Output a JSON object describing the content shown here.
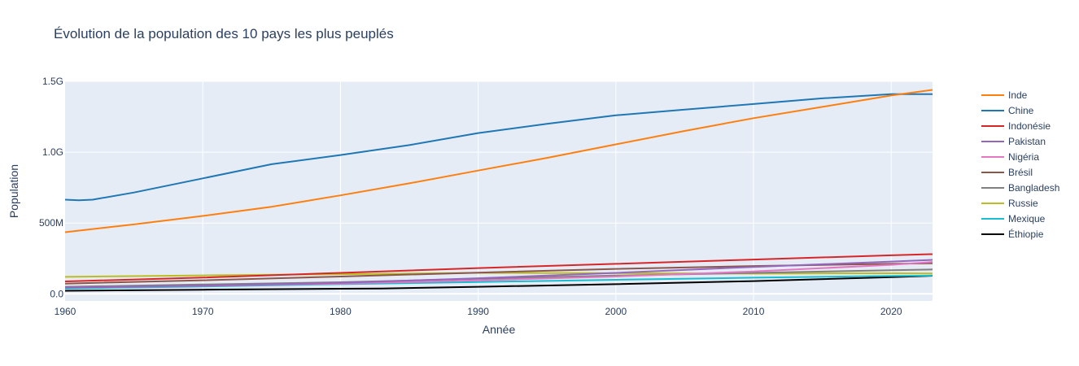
{
  "chart_data": {
    "type": "line",
    "title": "Évolution de la population des 10 pays les plus peuplés",
    "xlabel": "Année",
    "ylabel": "Population",
    "xlim": [
      1960,
      2023
    ],
    "ylim": [
      -50000000,
      1500000000
    ],
    "x_ticks": [
      1960,
      1970,
      1980,
      1990,
      2000,
      2010,
      2020
    ],
    "y_ticks": [
      {
        "value": 0,
        "label": "0.0"
      },
      {
        "value": 500000000,
        "label": "500M"
      },
      {
        "value": 1000000000,
        "label": "1.0G"
      },
      {
        "value": 1500000000,
        "label": "1.5G"
      }
    ],
    "grid": true,
    "legend_position": "right",
    "plot_background": "#e5ecf6",
    "series": [
      {
        "name": "Inde",
        "color": "#ff7f0e",
        "width": 2,
        "points": [
          [
            1960,
            435
          ],
          [
            1965,
            490
          ],
          [
            1970,
            550
          ],
          [
            1975,
            615
          ],
          [
            1980,
            695
          ],
          [
            1985,
            780
          ],
          [
            1990,
            870
          ],
          [
            1995,
            960
          ],
          [
            2000,
            1055
          ],
          [
            2005,
            1150
          ],
          [
            2010,
            1240
          ],
          [
            2015,
            1320
          ],
          [
            2020,
            1400
          ],
          [
            2023,
            1440
          ]
        ]
      },
      {
        "name": "Chine",
        "color": "#1f77b4",
        "width": 2,
        "points": [
          [
            1960,
            665
          ],
          [
            1961,
            660
          ],
          [
            1962,
            665
          ],
          [
            1965,
            715
          ],
          [
            1970,
            815
          ],
          [
            1975,
            915
          ],
          [
            1980,
            980
          ],
          [
            1985,
            1050
          ],
          [
            1990,
            1135
          ],
          [
            1995,
            1200
          ],
          [
            2000,
            1260
          ],
          [
            2005,
            1300
          ],
          [
            2010,
            1340
          ],
          [
            2015,
            1380
          ],
          [
            2020,
            1410
          ],
          [
            2023,
            1410
          ]
        ]
      },
      {
        "name": "Indonésie",
        "color": "#d62728",
        "width": 2,
        "points": [
          [
            1960,
            88
          ],
          [
            1970,
            115
          ],
          [
            1980,
            148
          ],
          [
            1990,
            182
          ],
          [
            2000,
            212
          ],
          [
            2010,
            242
          ],
          [
            2020,
            272
          ],
          [
            2023,
            280
          ]
        ]
      },
      {
        "name": "Pakistan",
        "color": "#9467bd",
        "width": 2,
        "points": [
          [
            1960,
            45
          ],
          [
            1970,
            58
          ],
          [
            1980,
            78
          ],
          [
            1990,
            110
          ],
          [
            2000,
            148
          ],
          [
            2010,
            190
          ],
          [
            2020,
            228
          ],
          [
            2023,
            240
          ]
        ]
      },
      {
        "name": "Nigéria",
        "color": "#e377c2",
        "width": 2,
        "points": [
          [
            1960,
            45
          ],
          [
            1970,
            56
          ],
          [
            1980,
            72
          ],
          [
            1990,
            95
          ],
          [
            2000,
            122
          ],
          [
            2010,
            158
          ],
          [
            2020,
            205
          ],
          [
            2023,
            225
          ]
        ]
      },
      {
        "name": "Brésil",
        "color": "#8c564b",
        "width": 2,
        "points": [
          [
            1960,
            72
          ],
          [
            1970,
            96
          ],
          [
            1980,
            122
          ],
          [
            1990,
            150
          ],
          [
            2000,
            176
          ],
          [
            2010,
            196
          ],
          [
            2020,
            212
          ],
          [
            2023,
            216
          ]
        ]
      },
      {
        "name": "Bangladesh",
        "color": "#7f7f7f",
        "width": 2,
        "points": [
          [
            1960,
            50
          ],
          [
            1970,
            66
          ],
          [
            1980,
            82
          ],
          [
            1990,
            106
          ],
          [
            2000,
            129
          ],
          [
            2010,
            148
          ],
          [
            2020,
            167
          ],
          [
            2023,
            172
          ]
        ]
      },
      {
        "name": "Russie",
        "color": "#bcbd22",
        "width": 2,
        "points": [
          [
            1960,
            120
          ],
          [
            1970,
            130
          ],
          [
            1980,
            139
          ],
          [
            1990,
            148
          ],
          [
            2000,
            146
          ],
          [
            2010,
            143
          ],
          [
            2020,
            145
          ],
          [
            2023,
            144
          ]
        ]
      },
      {
        "name": "Mexique",
        "color": "#17becf",
        "width": 2,
        "points": [
          [
            1960,
            38
          ],
          [
            1970,
            52
          ],
          [
            1980,
            68
          ],
          [
            1990,
            84
          ],
          [
            2000,
            99
          ],
          [
            2010,
            114
          ],
          [
            2020,
            126
          ],
          [
            2023,
            129
          ]
        ]
      },
      {
        "name": "Éthiopie",
        "color": "#000000",
        "width": 2,
        "points": [
          [
            1960,
            22
          ],
          [
            1970,
            29
          ],
          [
            1980,
            36
          ],
          [
            1983,
            38
          ],
          [
            1990,
            50
          ],
          [
            2000,
            68
          ],
          [
            2010,
            90
          ],
          [
            2020,
            118
          ],
          [
            2023,
            128
          ]
        ]
      }
    ],
    "value_unit_in_points": "millions"
  }
}
